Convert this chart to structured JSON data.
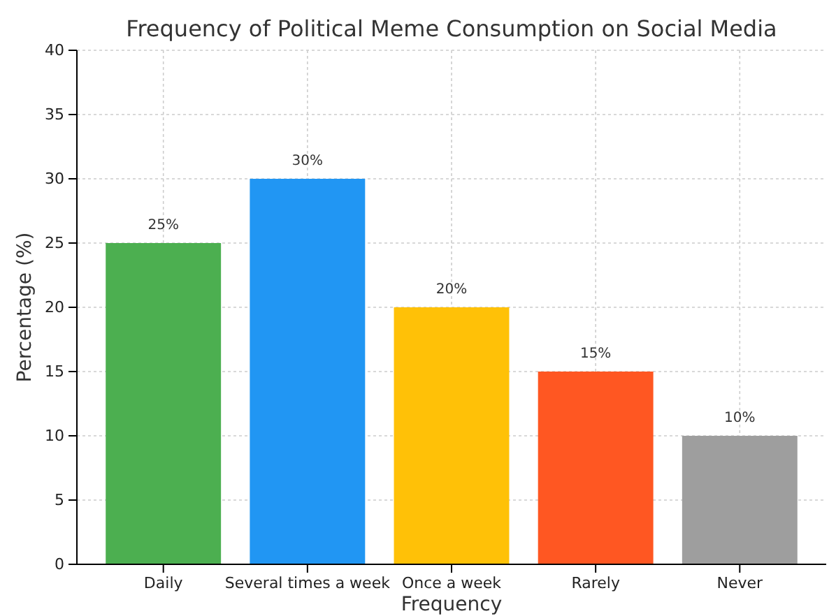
{
  "chart_data": {
    "type": "bar",
    "title": "Frequency of Political Meme Consumption on Social Media",
    "xlabel": "Frequency",
    "ylabel": "Percentage (%)",
    "categories": [
      "Daily",
      "Several times a week",
      "Once a week",
      "Rarely",
      "Never"
    ],
    "values": [
      25,
      30,
      20,
      15,
      10
    ],
    "colors": [
      "#4caf50",
      "#2196f3",
      "#ffc107",
      "#ff5722",
      "#9e9e9e"
    ],
    "value_labels": [
      "25%",
      "30%",
      "20%",
      "15%",
      "10%"
    ],
    "ylim": [
      0,
      40
    ],
    "yticks": [
      0,
      5,
      10,
      15,
      20,
      25,
      30,
      35,
      40
    ],
    "grid": true
  }
}
